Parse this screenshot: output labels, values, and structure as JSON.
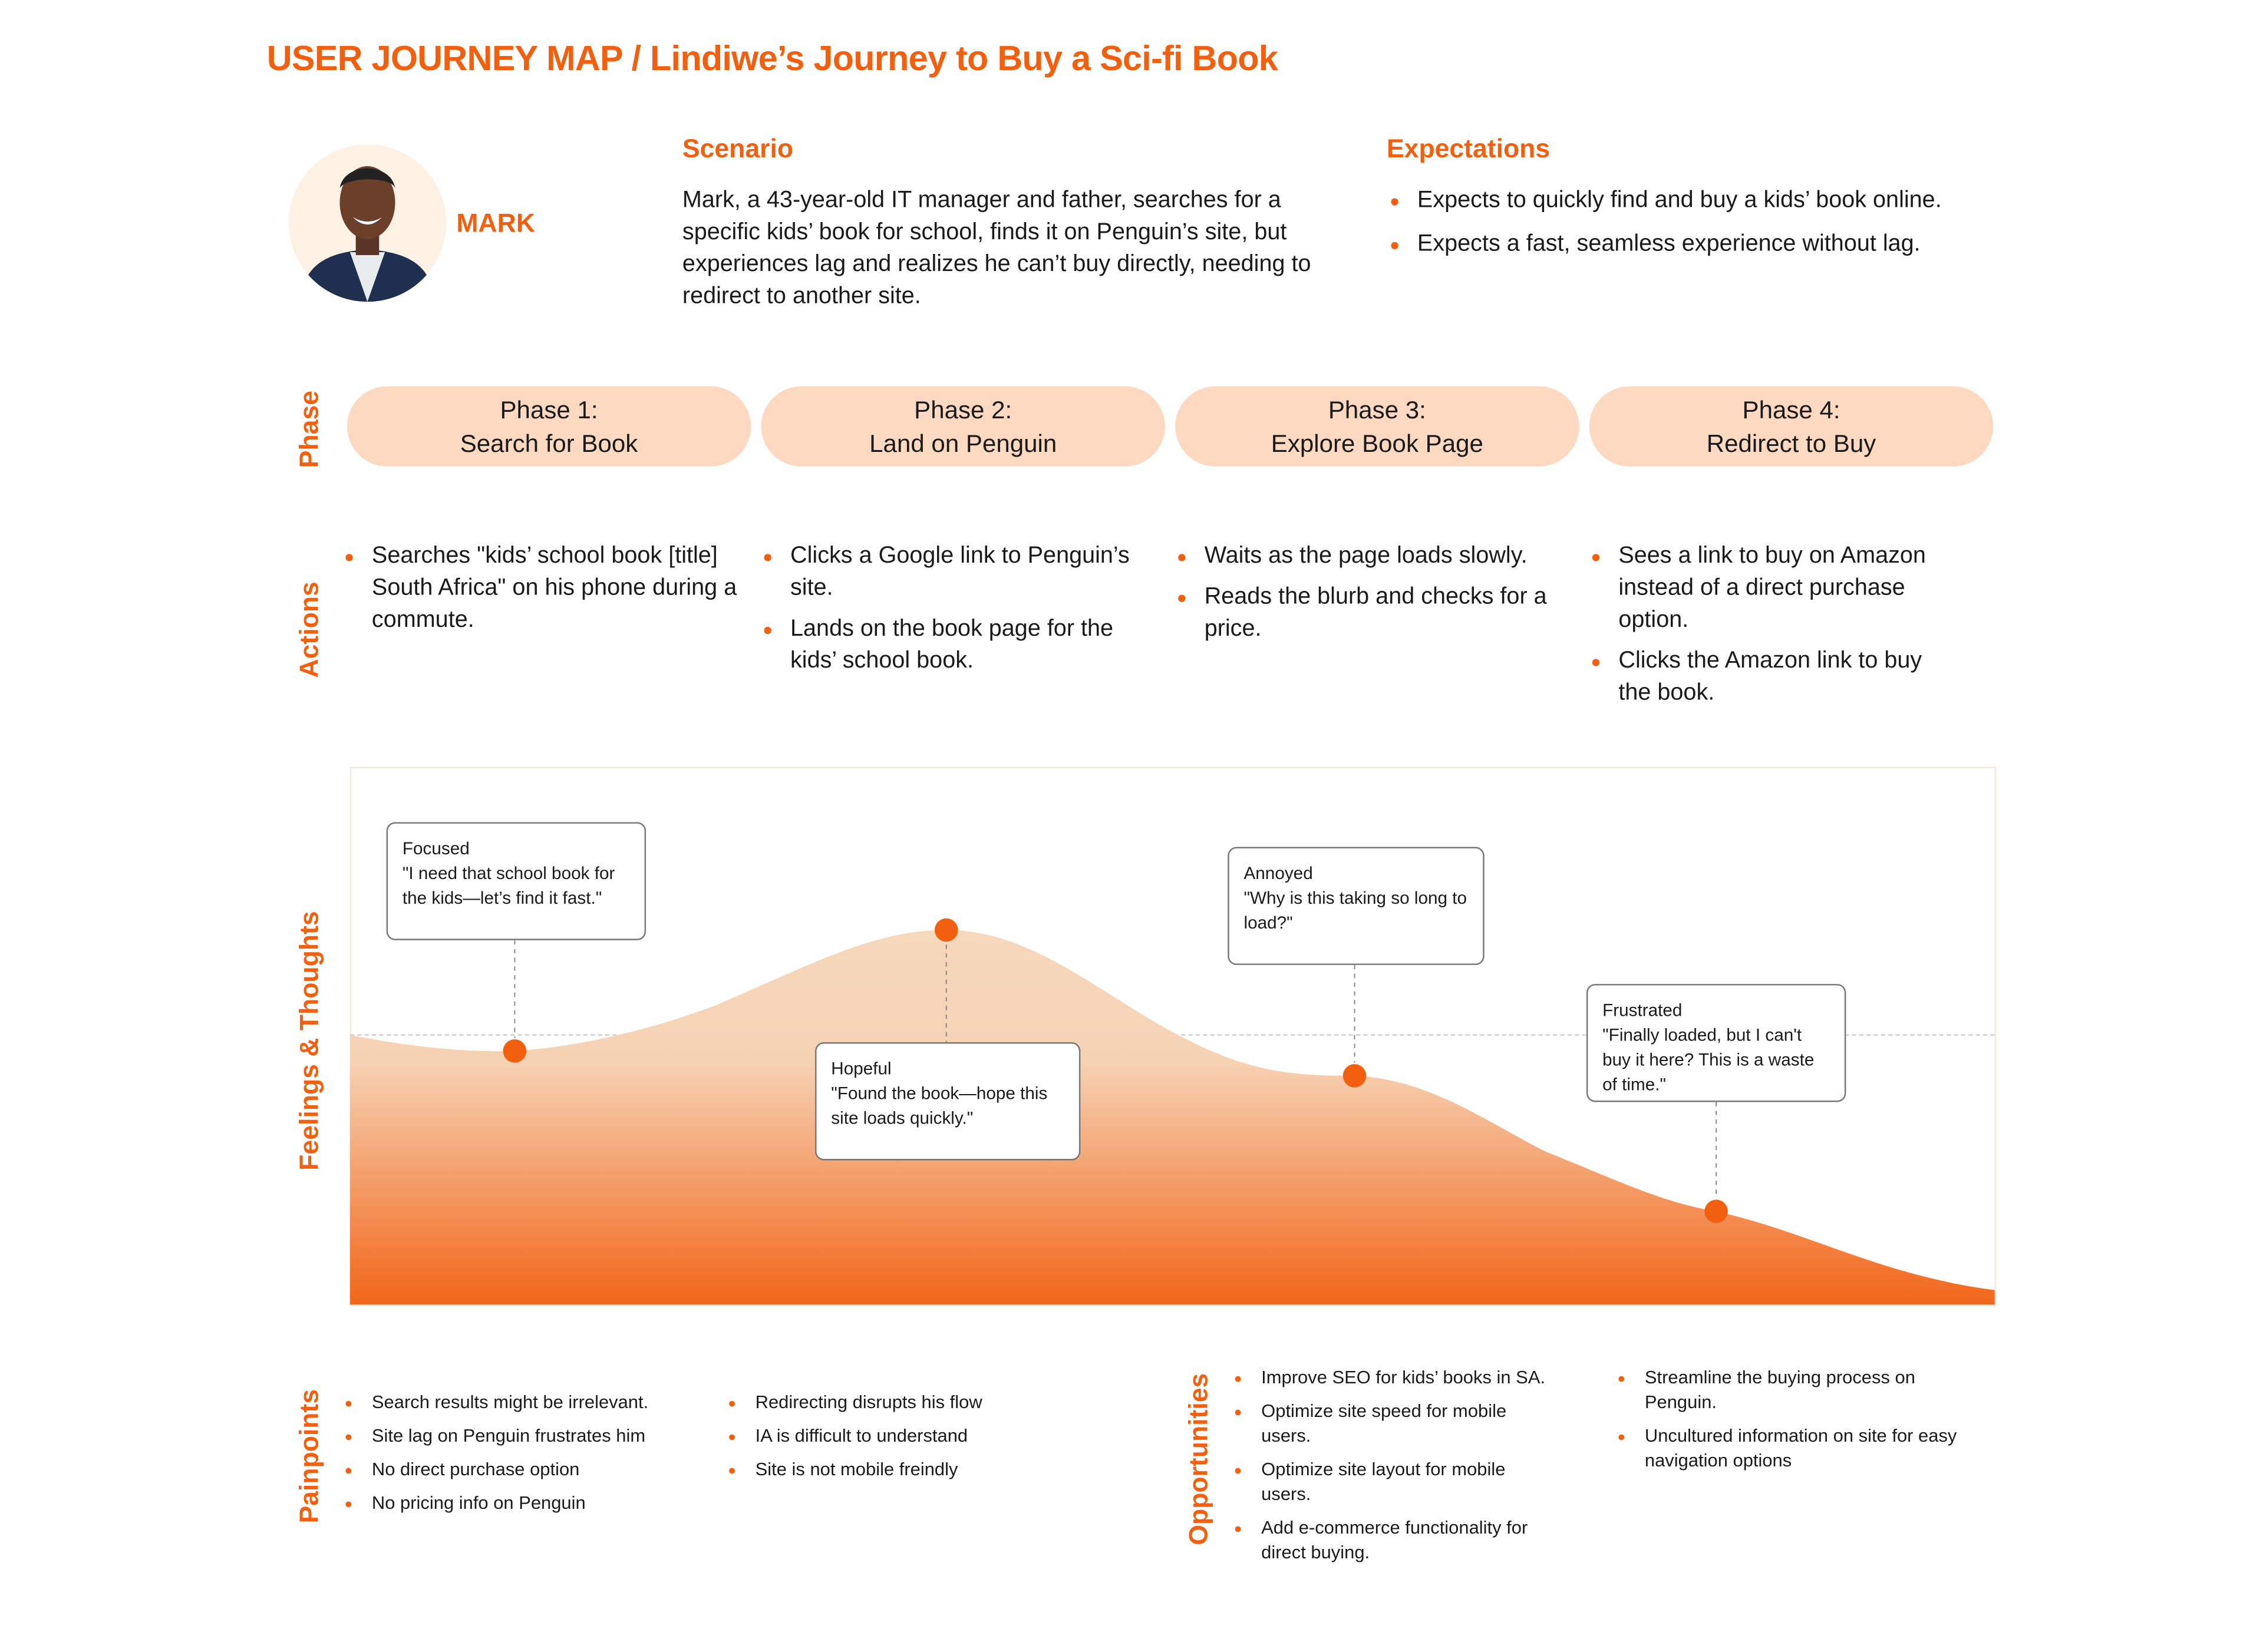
{
  "title": "USER JOURNEY MAP / Lindiwe’s Journey to Buy a Sci-fi Book",
  "persona": {
    "name": "MARK"
  },
  "scenario": {
    "heading": "Scenario",
    "text": "Mark, a 43-year-old IT manager and father, searches for a specific kids’ book for school, finds it on Penguin’s site, but experiences lag and realizes he can’t buy directly, needing to redirect to another site."
  },
  "expectations": {
    "heading": "Expectations",
    "items": [
      "Expects to quickly find and buy a kids’ book online.",
      "Expects a fast, seamless experience without lag."
    ]
  },
  "row_labels": {
    "phase": "Phase",
    "actions": "Actions",
    "feelings": "Feelings & Thoughts",
    "painpoints": "Painpoints",
    "opportunities": "Opportunities"
  },
  "phases": [
    {
      "label": "Phase 1:",
      "name": "Search for Book"
    },
    {
      "label": "Phase 2:",
      "name": "Land on Penguin"
    },
    {
      "label": "Phase 3:",
      "name": "Explore Book Page"
    },
    {
      "label": "Phase 4:",
      "name": "Redirect to Buy"
    }
  ],
  "actions": [
    [
      "Searches \"kids’ school book [title] South Africa\" on his phone during a commute."
    ],
    [
      "Clicks a Google link to Penguin’s site.",
      "Lands on the book page for the kids’ school book."
    ],
    [
      "Waits as the page loads slowly.",
      "Reads the blurb and checks for a price."
    ],
    [
      "Sees a link to buy on Amazon instead of a direct purchase option.",
      "Clicks the Amazon link to buy the book."
    ]
  ],
  "feelings": [
    {
      "emotion": "Focused",
      "quote": "\"I need that school book for the kids—let’s find it fast.\"",
      "level": "neutral-low"
    },
    {
      "emotion": "Hopeful",
      "quote": "\"Found the book—hope this site loads quickly.\"",
      "level": "high"
    },
    {
      "emotion": "Annoyed",
      "quote": " \"Why is this taking so long to load?\"",
      "level": "below-neutral"
    },
    {
      "emotion": "Frustrated",
      "quote": " \"Finally loaded, but I can't buy it here? This is a waste of time.\"",
      "level": "low"
    }
  ],
  "colors": {
    "accent": "#f2600f",
    "phase_fill": "#fcd9c0",
    "curve_top": "#f6d8bc",
    "curve_bottom": "#f2661a"
  },
  "painpoints": {
    "col1": [
      "Search results might be irrelevant.",
      "Site lag on Penguin frustrates him",
      "No direct purchase option",
      "No pricing info on Penguin"
    ],
    "col2": [
      "Redirecting disrupts his flow",
      "IA is difficult to understand",
      "Site is not mobile freindly"
    ]
  },
  "opportunities": {
    "col1": [
      "Improve SEO for kids’ books in SA.",
      "Optimize site speed for mobile users.",
      "Optimize site layout for mobile users.",
      "Add e-commerce functionality for direct buying."
    ],
    "col2": [
      "Streamline the buying process on Penguin.",
      "Uncultured information on site for easy navigation options"
    ]
  }
}
